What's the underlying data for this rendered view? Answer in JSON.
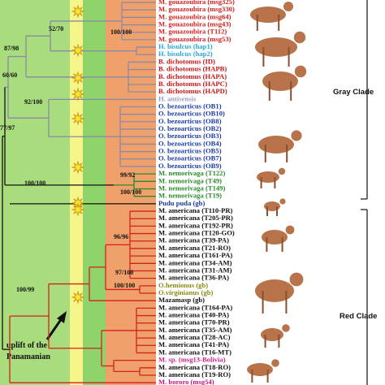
{
  "taxa": [
    "M. gouazoubira (msg325)",
    "M. gouazoubira (msg330)",
    "M. gouazoubira (msg64)",
    "M. gouazoubira (msg43)",
    "M. gouazoubira (T112)",
    "M. gouazoubira (msg53)",
    "H. bisulcus (hap1)",
    "H. bisulcus (hap2)",
    "B. dichotomus (ID)",
    "B. dichotomus (HAPB)",
    "B. dichotomus (HAPA)",
    "B. dichotomus (HAPC)",
    "B. dichotomus (HAPD)",
    "H. antisensis",
    "O. bezoarticus (OB1)",
    "O. bezoarticus (OB10)",
    "O. bezoarticus (OB8)",
    "O. bezoarticus (OB2)",
    "O. bezoarticus (OB3)",
    "O. bezoarticus (OB4)",
    "O. bezoarticus (OB5)",
    "O. bezoarticus (OB7)",
    "O. bezoarticus (OB9)",
    "M. nemorivaga (T122)",
    "M. nemorivaga (T49)",
    "M. nemorivaga (T149)",
    "M. nemorivaga (T19)",
    "Pudu puda (gb)",
    "M. americana (T110-PR)",
    "M. americana (T205-PR)",
    "M. americana (T192-PR)",
    "M. americana (T120-GO)",
    "M. americana (T39-PA)",
    "M. americana (T21-RO)",
    "M. americana (T161-PA)",
    "M. americana (T34-AM)",
    "M. americana (T31-AM)",
    "M. americana (T36-PA)",
    "O.hemionus (gb)",
    "O.virginianus (gb)",
    "Mazamasp (gb)",
    "M. americana (T164-PA)",
    "M. americana (T40-PA)",
    "M. americana (T70-PR)",
    "M. americana (T35-AM)",
    "M. americana (T28-AC)",
    "M. americana (T41-PA)",
    "M. americana (T16-MT)",
    "M. sp. (msg13-Bolivia)",
    "M. americana (T18-RO)",
    "M. americana (T19-RO)",
    "M. bororo (msg54)"
  ],
  "support": [
    "52/70",
    "100/100",
    "87/98",
    "60/60",
    "92/100",
    "77/97",
    "100/100",
    "99/92",
    "100/100",
    "96/96",
    "97/100",
    "100/100",
    "100/99"
  ],
  "clades": [
    "Gray Clade",
    "Red Clade"
  ],
  "annotation": [
    "uplift of the",
    "Panamanian"
  ]
}
